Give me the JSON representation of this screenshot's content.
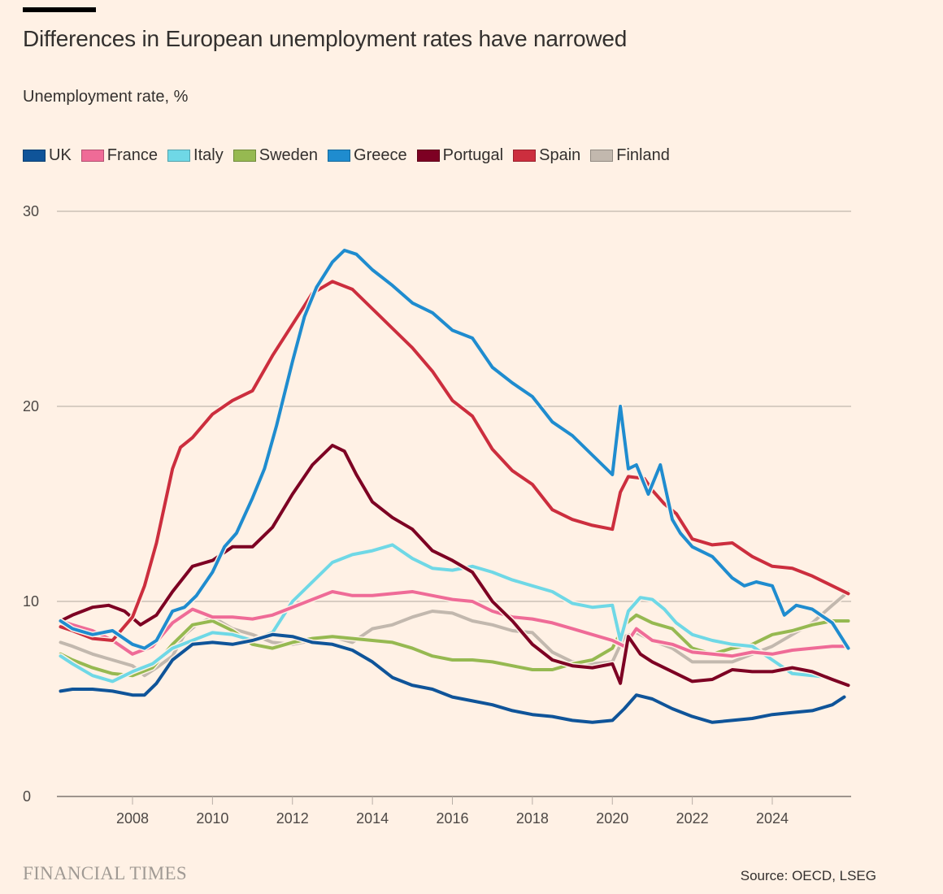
{
  "header": {
    "title": "Differences in European unemployment rates have narrowed",
    "subtitle": "Unemployment rate, %"
  },
  "footer": {
    "logo": "FINANCIAL TIMES",
    "source": "Source: OECD, LSEG"
  },
  "chart_data": {
    "type": "line",
    "title": "Differences in European unemployment rates have narrowed",
    "subtitle": "Unemployment rate, %",
    "xlabel": "",
    "ylabel": "Unemployment rate, %",
    "xlim": [
      2006.2,
      2026.0
    ],
    "ylim": [
      0,
      30
    ],
    "yticks": [
      0,
      10,
      20,
      30
    ],
    "ytick_labels": [
      "0",
      "10",
      "20",
      "30"
    ],
    "xticks": [
      2008,
      2010,
      2012,
      2014,
      2016,
      2018,
      2020,
      2022,
      2024
    ],
    "xtick_labels": [
      "2008",
      "2010",
      "2012",
      "2014",
      "2016",
      "2018",
      "2020",
      "2022",
      "2024"
    ],
    "grid": true,
    "legend_position": "top-left",
    "series": [
      {
        "name": "Finland",
        "color": "#c2b8ae",
        "x": [
          2006.2,
          2006.5,
          2007,
          2007.5,
          2008,
          2008.3,
          2008.6,
          2009,
          2009.3,
          2009.6,
          2010,
          2010.5,
          2011,
          2011.5,
          2012,
          2012.5,
          2013,
          2013.5,
          2014,
          2014.5,
          2015,
          2015.5,
          2016,
          2016.5,
          2017,
          2017.5,
          2018,
          2018.5,
          2019,
          2019.5,
          2020,
          2020.3,
          2020.6,
          2021,
          2021.5,
          2022,
          2022.5,
          2023,
          2023.5,
          2024,
          2024.5,
          2025,
          2025.5,
          2025.9
        ],
        "y": [
          7.9,
          7.7,
          7.3,
          7.0,
          6.7,
          6.2,
          6.6,
          7.2,
          8.3,
          8.8,
          9.2,
          8.6,
          8.3,
          7.9,
          7.8,
          8.0,
          8.2,
          7.9,
          8.6,
          8.8,
          9.2,
          9.5,
          9.4,
          9.0,
          8.8,
          8.5,
          8.4,
          7.4,
          6.9,
          6.8,
          6.9,
          8.2,
          8.4,
          8.0,
          7.6,
          6.9,
          6.9,
          6.9,
          7.3,
          7.7,
          8.3,
          8.9,
          9.8,
          10.5
        ]
      },
      {
        "name": "Sweden",
        "color": "#96b951",
        "x": [
          2006.2,
          2006.5,
          2007,
          2007.5,
          2008,
          2008.5,
          2009,
          2009.5,
          2010,
          2010.5,
          2011,
          2011.5,
          2012,
          2012.5,
          2013,
          2013.5,
          2014,
          2014.5,
          2015,
          2015.5,
          2016,
          2016.5,
          2017,
          2017.5,
          2018,
          2018.5,
          2019,
          2019.5,
          2020,
          2020.3,
          2020.6,
          2021,
          2021.5,
          2022,
          2022.5,
          2023,
          2023.5,
          2024,
          2024.5,
          2025,
          2025.5,
          2025.9
        ],
        "y": [
          7.3,
          7.0,
          6.6,
          6.3,
          6.2,
          6.6,
          7.8,
          8.8,
          9.0,
          8.5,
          7.8,
          7.6,
          7.9,
          8.1,
          8.2,
          8.1,
          8.0,
          7.9,
          7.6,
          7.2,
          7.0,
          7.0,
          6.9,
          6.7,
          6.5,
          6.5,
          6.8,
          7.0,
          7.6,
          8.8,
          9.3,
          8.9,
          8.6,
          7.6,
          7.3,
          7.6,
          7.8,
          8.3,
          8.5,
          8.8,
          9.0,
          9.0
        ]
      },
      {
        "name": "Italy",
        "color": "#6fd8e6",
        "x": [
          2006.2,
          2006.5,
          2007,
          2007.5,
          2008,
          2008.5,
          2009,
          2009.5,
          2010,
          2010.5,
          2011,
          2011.5,
          2012,
          2012.5,
          2013,
          2013.5,
          2014,
          2014.5,
          2015,
          2015.5,
          2016,
          2016.5,
          2017,
          2017.5,
          2018,
          2018.5,
          2019,
          2019.5,
          2020,
          2020.2,
          2020.4,
          2020.7,
          2021,
          2021.3,
          2021.6,
          2022,
          2022.5,
          2023,
          2023.5,
          2024,
          2024.5,
          2025,
          2025.4
        ],
        "y": [
          7.2,
          6.8,
          6.2,
          5.9,
          6.4,
          6.8,
          7.6,
          8.0,
          8.4,
          8.3,
          8.0,
          8.4,
          10.0,
          11.0,
          12.0,
          12.4,
          12.6,
          12.9,
          12.2,
          11.7,
          11.6,
          11.8,
          11.5,
          11.1,
          10.8,
          10.5,
          9.9,
          9.7,
          9.8,
          8.0,
          9.5,
          10.2,
          10.1,
          9.6,
          8.9,
          8.3,
          8.0,
          7.8,
          7.7,
          7.0,
          6.3,
          6.2,
          6.1
        ]
      },
      {
        "name": "France",
        "color": "#ef6b97",
        "x": [
          2006.2,
          2006.5,
          2007,
          2007.5,
          2008,
          2008.5,
          2009,
          2009.5,
          2010,
          2010.5,
          2011,
          2011.5,
          2012,
          2012.5,
          2013,
          2013.5,
          2014,
          2014.5,
          2015,
          2015.5,
          2016,
          2016.5,
          2017,
          2017.5,
          2018,
          2018.5,
          2019,
          2019.5,
          2020,
          2020.3,
          2020.6,
          2021,
          2021.5,
          2022,
          2022.5,
          2023,
          2023.5,
          2024,
          2024.5,
          2025,
          2025.5,
          2025.9
        ],
        "y": [
          9.0,
          8.8,
          8.5,
          8.0,
          7.3,
          7.7,
          8.9,
          9.6,
          9.2,
          9.2,
          9.1,
          9.3,
          9.7,
          10.1,
          10.5,
          10.3,
          10.3,
          10.4,
          10.5,
          10.3,
          10.1,
          10.0,
          9.5,
          9.2,
          9.1,
          8.9,
          8.6,
          8.3,
          8.0,
          7.7,
          8.6,
          8.0,
          7.8,
          7.4,
          7.3,
          7.2,
          7.4,
          7.3,
          7.5,
          7.6,
          7.7,
          7.7
        ]
      },
      {
        "name": "Portugal",
        "color": "#7d0023",
        "x": [
          2006.2,
          2006.5,
          2007,
          2007.4,
          2007.8,
          2008.2,
          2008.6,
          2009,
          2009.5,
          2010,
          2010.5,
          2011,
          2011.5,
          2012,
          2012.5,
          2013,
          2013.3,
          2013.6,
          2014,
          2014.5,
          2015,
          2015.5,
          2016,
          2016.5,
          2017,
          2017.5,
          2018,
          2018.5,
          2019,
          2019.5,
          2020,
          2020.2,
          2020.4,
          2020.7,
          2021,
          2021.5,
          2022,
          2022.5,
          2023,
          2023.5,
          2024,
          2024.5,
          2025,
          2025.5,
          2025.9
        ],
        "y": [
          9.0,
          9.3,
          9.7,
          9.8,
          9.5,
          8.8,
          9.3,
          10.5,
          11.8,
          12.1,
          12.8,
          12.8,
          13.8,
          15.5,
          17.0,
          18.0,
          17.7,
          16.5,
          15.1,
          14.3,
          13.7,
          12.6,
          12.1,
          11.5,
          10.0,
          9.0,
          7.8,
          7.0,
          6.7,
          6.6,
          6.8,
          5.8,
          8.2,
          7.3,
          6.9,
          6.4,
          5.9,
          6.0,
          6.5,
          6.4,
          6.4,
          6.6,
          6.4,
          6.0,
          5.7
        ]
      },
      {
        "name": "Spain",
        "color": "#cc2e3e",
        "x": [
          2006.2,
          2006.5,
          2007,
          2007.5,
          2008,
          2008.3,
          2008.6,
          2009,
          2009.2,
          2009.5,
          2010,
          2010.5,
          2011,
          2011.5,
          2012,
          2012.5,
          2013,
          2013.5,
          2014,
          2014.5,
          2015,
          2015.5,
          2016,
          2016.5,
          2017,
          2017.5,
          2018,
          2018.5,
          2019,
          2019.5,
          2020,
          2020.2,
          2020.4,
          2020.8,
          2021,
          2021.3,
          2021.6,
          2022,
          2022.5,
          2023,
          2023.5,
          2024,
          2024.5,
          2025,
          2025.5,
          2025.9
        ],
        "y": [
          8.7,
          8.5,
          8.1,
          8.0,
          9.2,
          10.8,
          13.0,
          16.8,
          17.9,
          18.4,
          19.6,
          20.3,
          20.8,
          22.6,
          24.2,
          25.8,
          26.4,
          26.0,
          25.0,
          24.0,
          23.0,
          21.8,
          20.3,
          19.5,
          17.8,
          16.7,
          16.0,
          14.7,
          14.2,
          13.9,
          13.7,
          15.6,
          16.4,
          16.3,
          15.7,
          15.0,
          14.5,
          13.2,
          12.9,
          13.0,
          12.3,
          11.8,
          11.7,
          11.3,
          10.8,
          10.4
        ]
      },
      {
        "name": "Greece",
        "color": "#1f8ccf",
        "x": [
          2006.2,
          2006.5,
          2007,
          2007.5,
          2008,
          2008.3,
          2008.6,
          2009,
          2009.3,
          2009.6,
          2010,
          2010.3,
          2010.6,
          2011,
          2011.3,
          2011.6,
          2012,
          2012.3,
          2012.6,
          2013,
          2013.3,
          2013.6,
          2014,
          2014.5,
          2015,
          2015.5,
          2016,
          2016.5,
          2017,
          2017.5,
          2018,
          2018.5,
          2019,
          2019.5,
          2020,
          2020.2,
          2020.4,
          2020.6,
          2020.9,
          2021.2,
          2021.5,
          2021.7,
          2022,
          2022.5,
          2023,
          2023.3,
          2023.6,
          2024,
          2024.3,
          2024.6,
          2025,
          2025.5,
          2025.9
        ],
        "y": [
          9.0,
          8.6,
          8.3,
          8.5,
          7.8,
          7.6,
          8.0,
          9.5,
          9.7,
          10.3,
          11.5,
          12.8,
          13.5,
          15.3,
          16.8,
          19.0,
          22.3,
          24.6,
          26.1,
          27.4,
          28.0,
          27.8,
          27.0,
          26.2,
          25.3,
          24.8,
          23.9,
          23.5,
          22.0,
          21.2,
          20.5,
          19.2,
          18.5,
          17.5,
          16.5,
          20.0,
          16.8,
          17.0,
          15.5,
          17.0,
          14.2,
          13.5,
          12.8,
          12.3,
          11.2,
          10.8,
          11.0,
          10.8,
          9.3,
          9.8,
          9.6,
          8.9,
          7.6
        ]
      },
      {
        "name": "UK",
        "color": "#0f5499",
        "x": [
          2006.2,
          2006.5,
          2007,
          2007.5,
          2008,
          2008.3,
          2008.6,
          2009,
          2009.5,
          2010,
          2010.5,
          2011,
          2011.5,
          2012,
          2012.5,
          2013,
          2013.5,
          2014,
          2014.5,
          2015,
          2015.5,
          2016,
          2016.5,
          2017,
          2017.5,
          2018,
          2018.5,
          2019,
          2019.5,
          2020,
          2020.3,
          2020.6,
          2021,
          2021.5,
          2022,
          2022.5,
          2023,
          2023.5,
          2024,
          2024.5,
          2025,
          2025.5,
          2025.8
        ],
        "y": [
          5.4,
          5.5,
          5.5,
          5.4,
          5.2,
          5.2,
          5.8,
          7.0,
          7.8,
          7.9,
          7.8,
          8.0,
          8.3,
          8.2,
          7.9,
          7.8,
          7.5,
          6.9,
          6.1,
          5.7,
          5.5,
          5.1,
          4.9,
          4.7,
          4.4,
          4.2,
          4.1,
          3.9,
          3.8,
          3.9,
          4.5,
          5.2,
          5.0,
          4.5,
          4.1,
          3.8,
          3.9,
          4.0,
          4.2,
          4.3,
          4.4,
          4.7,
          5.1
        ]
      }
    ]
  }
}
